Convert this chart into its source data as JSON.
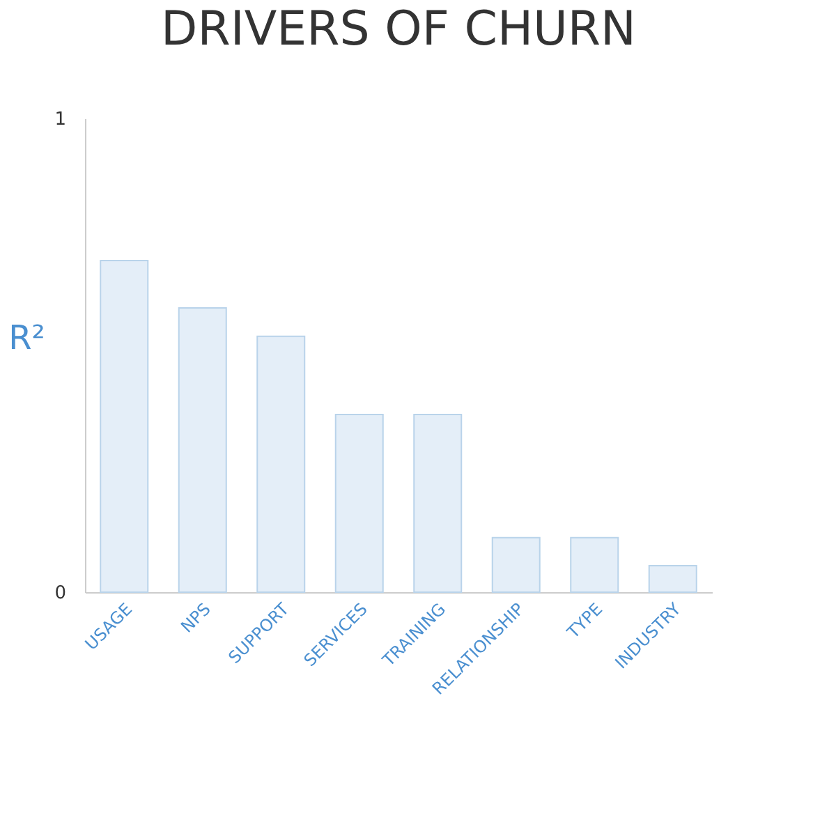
{
  "chart_data": {
    "type": "bar",
    "title": "DRIVERS OF CHURN",
    "ylabel": "R²",
    "categories": [
      "USAGE",
      "NPS",
      "SUPPORT",
      "SERVICES",
      "TRAINING",
      "RELATIONSHIP",
      "TYPE",
      "INDUSTRY"
    ],
    "values": [
      0.7,
      0.6,
      0.54,
      0.375,
      0.375,
      0.115,
      0.115,
      0.056
    ],
    "color": "#e4eef8",
    "ylim": [
      0,
      1
    ],
    "yticks": [
      0,
      1
    ],
    "grid": false
  }
}
